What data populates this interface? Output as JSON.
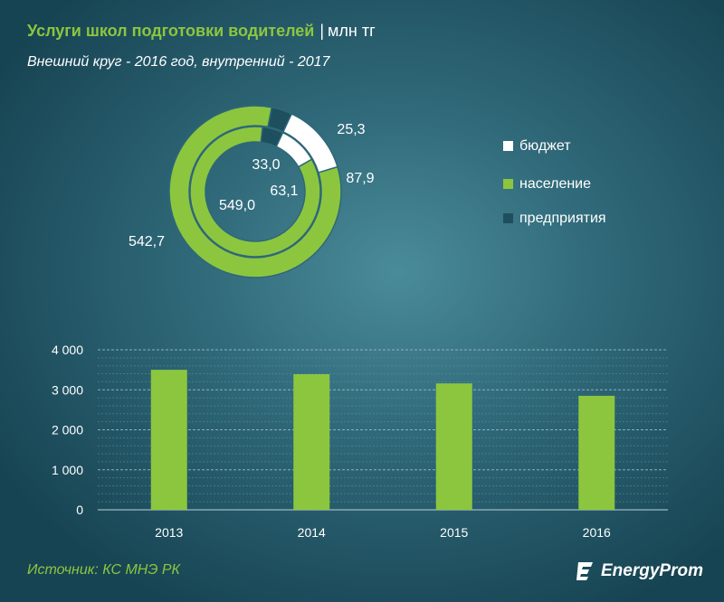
{
  "header": {
    "title": "Услуги школ подготовки водителей",
    "separator": "|",
    "unit": "млн тг",
    "subtitle": "Внешний круг - 2016 год, внутренний - 2017"
  },
  "chart_data": [
    {
      "type": "pie",
      "subtype": "donut",
      "series": [
        {
          "name": "2016",
          "ring": "outer",
          "values": [
            87.9,
            542.7,
            25.3
          ],
          "labels": [
            "87,9",
            "542,7",
            "25,3"
          ]
        },
        {
          "name": "2017",
          "ring": "inner",
          "values": [
            63.1,
            549.0,
            33.0
          ],
          "labels": [
            "63,1",
            "549,0",
            "33,0"
          ]
        }
      ],
      "categories": [
        "бюджет",
        "население",
        "предприятия"
      ],
      "colors": [
        "#ffffff",
        "#8cc63f",
        "#1d4f5e"
      ],
      "legend_position": "right"
    },
    {
      "type": "bar",
      "categories": [
        "2013",
        "2014",
        "2015",
        "2016"
      ],
      "values": [
        3500,
        3390,
        3160,
        2850
      ],
      "ylim": [
        0,
        4000
      ],
      "yticks": [
        0,
        1000,
        2000,
        3000,
        4000
      ],
      "ytick_labels": [
        "0",
        "1 000",
        "2 000",
        "3 000",
        "4 000"
      ],
      "color": "#8cc63f",
      "grid": true
    }
  ],
  "footer": {
    "source": "Источник: КС МНЭ РК",
    "brand": "EnergyProm"
  }
}
